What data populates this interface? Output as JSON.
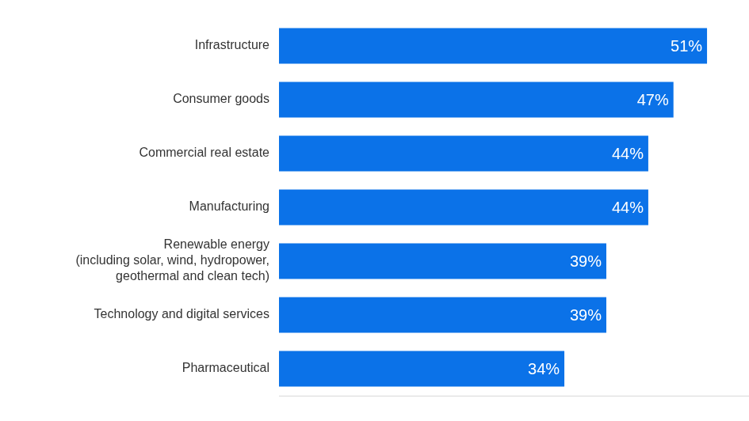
{
  "chart_data": {
    "type": "bar",
    "orientation": "horizontal",
    "categories": [
      "Infrastructure",
      "Consumer goods",
      "Commercial real estate",
      "Manufacturing",
      "Renewable energy\n(including solar, wind, hydropower,\ngeothermal and clean tech)",
      "Technology and digital services",
      "Pharmaceutical"
    ],
    "values": [
      51,
      47,
      44,
      44,
      39,
      39,
      34
    ],
    "value_labels": [
      "51%",
      "47%",
      "44%",
      "44%",
      "39%",
      "39%",
      "34%"
    ],
    "color": "#0b72e8",
    "xlim": [
      0,
      56
    ],
    "grid": false,
    "data_labels": true,
    "tick_labels": "y"
  }
}
